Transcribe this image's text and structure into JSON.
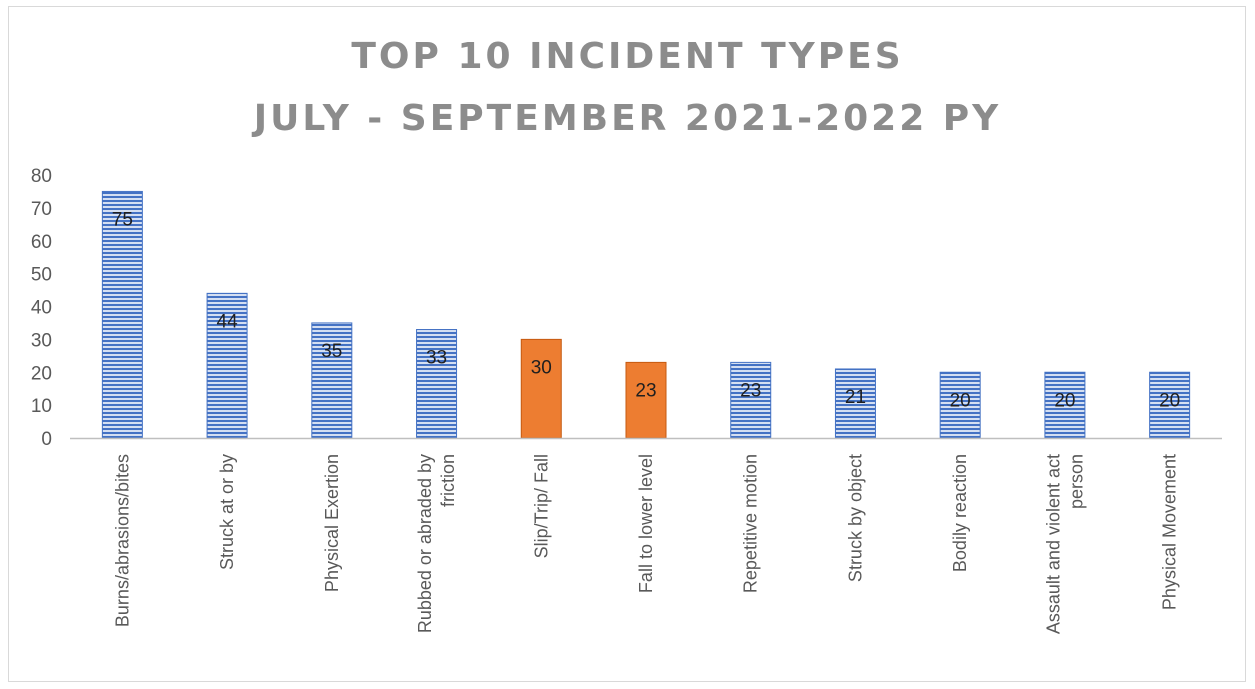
{
  "chart_data": {
    "type": "bar",
    "title": [
      "TOP 10 INCIDENT TYPES",
      "JULY - SEPTEMBER 2021-2022 PY"
    ],
    "xlabel": "",
    "ylabel": "",
    "ylim": [
      0,
      80
    ],
    "yticks": [
      0,
      10,
      20,
      30,
      40,
      50,
      60,
      70,
      80
    ],
    "categories": [
      [
        "Burns/abrasions/bites"
      ],
      [
        "Struck at or by"
      ],
      [
        "Physical Exertion"
      ],
      [
        "Rubbed or abraded by",
        "friction"
      ],
      [
        "Slip/Trip/ Fall"
      ],
      [
        "Fall to lower level"
      ],
      [
        "Repetitive motion"
      ],
      [
        "Struck by object"
      ],
      [
        "Bodily reaction"
      ],
      [
        "Assault and violent act",
        "person"
      ],
      [
        "Physical Movement"
      ]
    ],
    "values": [
      75,
      44,
      35,
      33,
      30,
      23,
      23,
      21,
      20,
      20,
      20
    ],
    "bar_styles": [
      "striped-blue",
      "striped-blue",
      "striped-blue",
      "striped-blue",
      "solid-orange",
      "solid-orange",
      "striped-blue",
      "striped-blue",
      "striped-blue",
      "striped-blue",
      "striped-blue"
    ],
    "data_labels": true,
    "grid": false,
    "legend": "none",
    "colors": {
      "blue": "#4472c4",
      "blue_light": "#d4dff2",
      "orange": "#ed7d31",
      "orange_dark": "#c55a11",
      "axis": "#bfbfbf",
      "text": "#595959",
      "label": "#1f1f1f",
      "title": "#8c8c8c"
    }
  }
}
